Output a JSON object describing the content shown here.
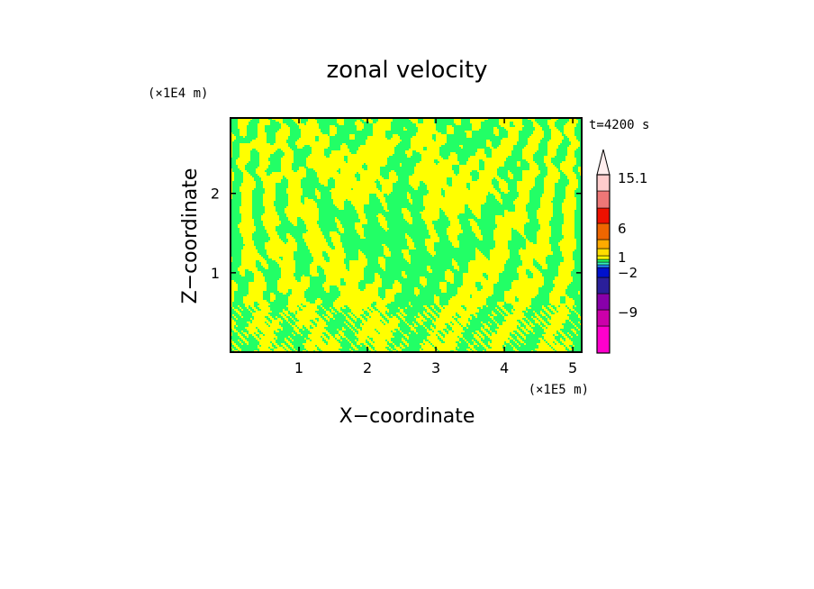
{
  "chart_data": {
    "type": "heatmap",
    "title": "zonal velocity",
    "xlabel": "X−coordinate",
    "ylabel": "Z−coordinate",
    "x_unit": "(×1E5 m)",
    "y_unit": "(×1E4 m)",
    "time_label": "t=4200 s",
    "xlim": [
      0,
      5.13
    ],
    "ylim": [
      0,
      2.95
    ],
    "x_ticks": [
      "1",
      "2",
      "3",
      "4",
      "5"
    ],
    "x_tick_values": [
      1,
      2,
      3,
      4,
      5
    ],
    "y_ticks": [
      "1",
      "2"
    ],
    "y_tick_values": [
      1,
      2
    ],
    "field_colors": {
      "positive": "#ffff00",
      "negative": "#22ff66"
    },
    "colorbar": {
      "labels": [
        "15.1",
        "6",
        "1",
        "−2",
        "−9"
      ],
      "label_values": [
        15.1,
        6,
        1,
        -2,
        -9
      ],
      "levels": [
        -15,
        -12,
        -9,
        -6,
        -3,
        -2,
        -1,
        0,
        1,
        2,
        3,
        6,
        9,
        12,
        15.1
      ],
      "colors": [
        "#ff00cc",
        "#cc00aa",
        "#8800aa",
        "#2a1f9a",
        "#0011cc",
        "#2288ff",
        "#33eebb",
        "#22ff66",
        "#ffff00",
        "#ffdd00",
        "#ffaa00",
        "#ee6600",
        "#ee1100",
        "#ee7777",
        "#ffcccc"
      ],
      "extend": "max",
      "extend_color": "#ffeeee"
    }
  }
}
